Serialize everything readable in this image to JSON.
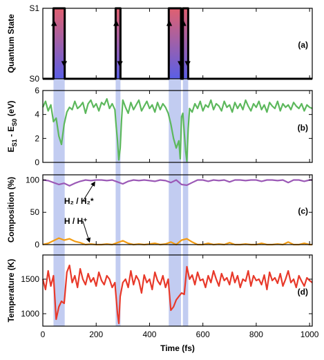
{
  "chart_data": {
    "type": "line",
    "shared_x": {
      "label": "Time (fs)",
      "lim": [
        0,
        1010
      ],
      "ticks": [
        0,
        200,
        400,
        600,
        800,
        1000
      ]
    },
    "highlight_spans": [
      [
        40,
        82
      ],
      [
        273,
        291
      ],
      [
        472,
        518
      ],
      [
        525,
        545
      ]
    ],
    "highlight_color": "#b7c3ee",
    "panels": [
      {
        "id": "a",
        "panel_label": "(a)",
        "ylabel": "Quantum State",
        "ylim": [
          0,
          1
        ],
        "yticks": [
          0,
          1
        ],
        "ytick_labels": [
          "S0",
          "S1"
        ],
        "gradient_colors": [
          "#e06070",
          "#5a5fe6"
        ],
        "series": [
          {
            "color": "#000000",
            "x": [
              0,
              40,
              40,
              82,
              82,
              273,
              273,
              291,
              291,
              472,
              472,
              518,
              518,
              525,
              525,
              545,
              545,
              1010
            ],
            "values": [
              0,
              0,
              1,
              1,
              0,
              0,
              1,
              1,
              0,
              0,
              1,
              1,
              0,
              0,
              1,
              1,
              0,
              0
            ]
          }
        ],
        "arrows": [
          {
            "x": 42,
            "dir": "up"
          },
          {
            "x": 80,
            "dir": "down"
          },
          {
            "x": 275,
            "dir": "up"
          },
          {
            "x": 289,
            "dir": "down"
          },
          {
            "x": 474,
            "dir": "up"
          },
          {
            "x": 516,
            "dir": "down"
          },
          {
            "x": 527,
            "dir": "up"
          },
          {
            "x": 543,
            "dir": "down"
          }
        ]
      },
      {
        "id": "b",
        "panel_label": "(b)",
        "ylabel_main": "E",
        "ylabel_sub1": "S1",
        "ylabel_mid": " - E",
        "ylabel_sub2": "S0",
        "ylabel_unit": " (eV)",
        "ylim": [
          0,
          6
        ],
        "yticks": [
          0,
          2,
          4,
          6
        ],
        "series": [
          {
            "color": "#5cb85c",
            "x": [
              0,
              10,
              20,
              30,
              40,
              50,
              60,
              70,
              80,
              90,
              100,
              110,
              120,
              130,
              140,
              150,
              160,
              170,
              180,
              190,
              200,
              210,
              220,
              230,
              240,
              250,
              260,
              270,
              275,
              280,
              285,
              290,
              295,
              300,
              310,
              320,
              330,
              340,
              350,
              360,
              370,
              380,
              390,
              400,
              410,
              420,
              430,
              440,
              450,
              460,
              470,
              480,
              490,
              500,
              510,
              515,
              520,
              525,
              530,
              535,
              540,
              545,
              550,
              560,
              570,
              580,
              590,
              600,
              610,
              620,
              630,
              640,
              650,
              660,
              670,
              680,
              690,
              700,
              710,
              720,
              730,
              740,
              750,
              760,
              770,
              780,
              790,
              800,
              810,
              820,
              830,
              840,
              850,
              860,
              870,
              880,
              890,
              900,
              910,
              920,
              930,
              940,
              950,
              960,
              970,
              980,
              990,
              1000,
              1010
            ],
            "values": [
              4.6,
              5.1,
              4.3,
              4.8,
              3.4,
              3.7,
              2.2,
              1.5,
              3.2,
              4.2,
              4.6,
              4.4,
              5.1,
              4.5,
              4.7,
              5.0,
              4.1,
              4.9,
              5.2,
              4.6,
              4.9,
              4.3,
              5.0,
              4.8,
              5.3,
              4.5,
              4.9,
              4.4,
              3.0,
              1.8,
              0.2,
              1.2,
              3.5,
              5.2,
              4.6,
              4.1,
              5.0,
              4.4,
              4.8,
              5.2,
              4.3,
              4.7,
              5.1,
              4.5,
              4.8,
              4.2,
              5.0,
              4.4,
              4.9,
              4.6,
              4.1,
              3.2,
              2.0,
              1.2,
              1.8,
              0.3,
              3.8,
              4.1,
              2.5,
              1.0,
              0.1,
              2.8,
              4.5,
              4.2,
              4.9,
              4.5,
              5.1,
              4.3,
              4.8,
              4.6,
              5.2,
              4.4,
              4.9,
              4.7,
              4.3,
              5.1,
              4.6,
              4.8,
              4.2,
              5.0,
              4.5,
              4.9,
              4.4,
              5.2,
              4.7,
              4.3,
              4.9,
              4.6,
              5.1,
              4.4,
              4.8,
              4.2,
              5.0,
              4.7,
              4.5,
              5.1,
              4.3,
              4.9,
              4.6,
              4.8,
              4.4,
              5.0,
              4.7,
              4.5,
              4.9,
              4.3,
              4.8,
              4.6,
              4.5
            ]
          }
        ]
      },
      {
        "id": "c",
        "panel_label": "(c)",
        "ylabel": "Composition (%)",
        "ylim": [
          0,
          108
        ],
        "yticks": [
          0,
          50,
          100
        ],
        "annotations": [
          {
            "text": "H₂ / H₂*",
            "x": 80,
            "y": 63,
            "arrow_to": [
              195,
              97
            ]
          },
          {
            "text": "H / H⁺",
            "x": 80,
            "y": 32,
            "arrow_to": [
              175,
              4
            ]
          }
        ],
        "series": [
          {
            "color": "#9b59b6",
            "x": [
              0,
              20,
              40,
              60,
              80,
              100,
              120,
              140,
              160,
              180,
              200,
              220,
              240,
              260,
              280,
              300,
              320,
              340,
              360,
              380,
              400,
              420,
              440,
              460,
              480,
              500,
              520,
              540,
              560,
              580,
              600,
              620,
              640,
              660,
              680,
              700,
              720,
              740,
              760,
              780,
              800,
              820,
              840,
              860,
              880,
              900,
              920,
              940,
              960,
              980,
              1000,
              1010
            ],
            "values": [
              100,
              99,
              96,
              93,
              95,
              91,
              95,
              98,
              100,
              99,
              100,
              100,
              99,
              100,
              97,
              94,
              98,
              100,
              99,
              100,
              99,
              98,
              100,
              99,
              96,
              100,
              93,
              92,
              96,
              100,
              100,
              98,
              100,
              99,
              100,
              97,
              100,
              100,
              99,
              100,
              100,
              98,
              100,
              100,
              99,
              100,
              96,
              100,
              100,
              98,
              100,
              100
            ]
          },
          {
            "color": "#f39c12",
            "x": [
              0,
              20,
              40,
              60,
              80,
              100,
              120,
              140,
              160,
              180,
              200,
              220,
              240,
              260,
              280,
              300,
              320,
              340,
              360,
              380,
              400,
              420,
              440,
              460,
              480,
              500,
              520,
              540,
              560,
              580,
              600,
              620,
              640,
              660,
              680,
              700,
              720,
              740,
              760,
              780,
              800,
              820,
              840,
              860,
              880,
              900,
              920,
              940,
              960,
              980,
              1000,
              1010
            ],
            "values": [
              0,
              2,
              6,
              10,
              7,
              9,
              5,
              3,
              0,
              1,
              0,
              0,
              1,
              0,
              3,
              6,
              2,
              0,
              1,
              0,
              1,
              2,
              0,
              1,
              4,
              0,
              7,
              9,
              4,
              0,
              0,
              2,
              0,
              1,
              0,
              3,
              0,
              0,
              1,
              0,
              0,
              2,
              0,
              0,
              1,
              0,
              4,
              0,
              0,
              2,
              0,
              0
            ]
          }
        ]
      },
      {
        "id": "d",
        "panel_label": "(d)",
        "ylabel": "Temperature (K)",
        "ylim": [
          820,
          1850
        ],
        "yticks": [
          1000,
          1500
        ],
        "series": [
          {
            "color": "#e8392a",
            "x": [
              0,
              10,
              20,
              30,
              40,
              50,
              60,
              70,
              80,
              90,
              100,
              110,
              120,
              130,
              140,
              150,
              160,
              170,
              180,
              190,
              200,
              210,
              220,
              230,
              240,
              250,
              260,
              270,
              280,
              285,
              290,
              300,
              310,
              320,
              330,
              340,
              350,
              360,
              370,
              380,
              390,
              400,
              410,
              420,
              430,
              440,
              450,
              460,
              470,
              480,
              490,
              500,
              510,
              520,
              530,
              540,
              550,
              560,
              570,
              580,
              590,
              600,
              610,
              620,
              630,
              640,
              650,
              660,
              670,
              680,
              690,
              700,
              710,
              720,
              730,
              740,
              750,
              760,
              770,
              780,
              790,
              800,
              810,
              820,
              830,
              840,
              850,
              860,
              870,
              880,
              890,
              900,
              910,
              920,
              930,
              940,
              950,
              960,
              970,
              980,
              990,
              1000,
              1010
            ],
            "values": [
              1500,
              1350,
              1620,
              1400,
              1550,
              920,
              1100,
              1180,
              1150,
              1600,
              1700,
              1450,
              1550,
              1380,
              1650,
              1500,
              1420,
              1580,
              1460,
              1520,
              1400,
              1600,
              1480,
              1420,
              1550,
              1500,
              1380,
              1450,
              1000,
              860,
              1250,
              1450,
              1500,
              1380,
              1620,
              1420,
              1550,
              1480,
              1300,
              1560,
              1450,
              1500,
              1350,
              1600,
              1480,
              1420,
              1550,
              1380,
              1500,
              1050,
              1100,
              1200,
              1250,
              1300,
              1280,
              1680,
              1500,
              1560,
              1420,
              1600,
              1480,
              1500,
              1380,
              1550,
              1450,
              1620,
              1500,
              1400,
              1580,
              1480,
              1520,
              1420,
              1600,
              1450,
              1550,
              1380,
              1500,
              1470,
              1620,
              1400,
              1550,
              1480,
              1500,
              1420,
              1560,
              1350,
              1600,
              1480,
              1520,
              1440,
              1580,
              1400,
              1500,
              1620,
              1450,
              1500,
              1380,
              1550,
              1470,
              1400,
              1520,
              1480,
              1450
            ]
          }
        ]
      }
    ]
  }
}
